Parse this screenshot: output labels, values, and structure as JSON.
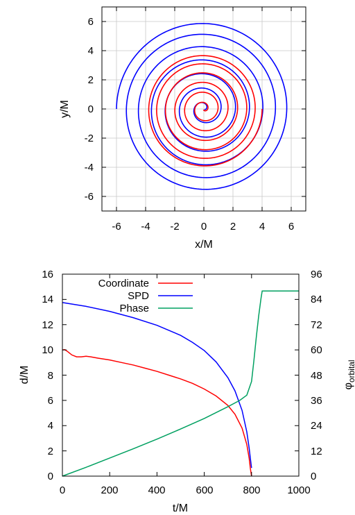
{
  "chart_data": [
    {
      "type": "line",
      "subtype": "parametric-orbit",
      "xlabel": "x/M",
      "ylabel": "y/M",
      "xlim": [
        -7,
        7
      ],
      "ylim": [
        -7,
        7
      ],
      "xticks": [
        -6,
        -4,
        -2,
        0,
        2,
        4,
        6
      ],
      "yticks": [
        -6,
        -4,
        -2,
        0,
        2,
        4,
        6
      ],
      "xtick_labels": [
        "-6",
        "-4",
        "-2",
        "0",
        "2",
        "4",
        "6"
      ],
      "ytick_labels": [
        "6",
        "4",
        "2",
        "0",
        "-2",
        "-4",
        "-6"
      ],
      "grid": true,
      "series": [
        {
          "color": "#0000ff",
          "start_point": [
            -6.0,
            0.0
          ],
          "spiral": {
            "r_start": 6.0,
            "r_end": 0.05,
            "turns": 6.6,
            "direction": "clockwise"
          }
        },
        {
          "color": "#ff0000",
          "start_point": [
            4.0,
            0.0
          ],
          "spiral": {
            "r_start": 4.0,
            "r_end": 0.05,
            "turns": 6.3,
            "direction": "clockwise"
          }
        }
      ]
    },
    {
      "type": "line",
      "xlabel": "t/M",
      "ylabel": "d/M",
      "y2label": "φorbital",
      "y2label_main": "φ",
      "y2label_sub": "orbital",
      "xlim": [
        0,
        1000
      ],
      "ylim": [
        0,
        16
      ],
      "y2lim": [
        0,
        96
      ],
      "xticks": [
        0,
        200,
        400,
        600,
        800,
        1000
      ],
      "yticks": [
        0,
        2,
        4,
        6,
        8,
        10,
        12,
        14,
        16
      ],
      "y2ticks": [
        0,
        12,
        24,
        36,
        48,
        60,
        72,
        84,
        96
      ],
      "xtick_labels": [
        "0",
        "200",
        "400",
        "600",
        "800",
        "1000"
      ],
      "ytick_labels": [
        "16",
        "14",
        "12",
        "10",
        "8",
        "6",
        "4",
        "2",
        "0"
      ],
      "y2tick_labels": [
        "96",
        "84",
        "72",
        "60",
        "48",
        "36",
        "24",
        "12",
        "0"
      ],
      "grid": false,
      "legend_position": "top-center",
      "series": [
        {
          "name": "Coordinate",
          "color": "#ff0000",
          "axis": "left",
          "x": [
            0,
            10,
            20,
            30,
            40,
            60,
            80,
            100,
            120,
            150,
            200,
            250,
            300,
            350,
            400,
            450,
            500,
            550,
            600,
            650,
            700,
            730,
            760,
            780,
            790,
            795,
            800
          ],
          "y": [
            10.0,
            10.02,
            9.9,
            9.75,
            9.6,
            9.45,
            9.45,
            9.5,
            9.45,
            9.35,
            9.2,
            9.0,
            8.8,
            8.55,
            8.3,
            8.0,
            7.7,
            7.35,
            6.9,
            6.35,
            5.6,
            4.9,
            3.8,
            2.5,
            1.4,
            0.6,
            0.0
          ]
        },
        {
          "name": "SPD",
          "color": "#0000ff",
          "axis": "left",
          "x": [
            0,
            100,
            200,
            300,
            400,
            500,
            550,
            600,
            650,
            700,
            730,
            760,
            780,
            790,
            795,
            800
          ],
          "y": [
            13.75,
            13.45,
            13.05,
            12.55,
            11.95,
            11.15,
            10.6,
            9.95,
            9.05,
            7.8,
            6.75,
            5.2,
            3.5,
            2.2,
            1.4,
            0.65
          ]
        },
        {
          "name": "Phase",
          "color": "#00a060",
          "axis": "right",
          "x": [
            0,
            100,
            200,
            300,
            400,
            500,
            600,
            700,
            750,
            780,
            800,
            810,
            820,
            830,
            840,
            845,
            1000
          ],
          "y": [
            0,
            4.2,
            8.6,
            13.0,
            17.6,
            22.4,
            27.4,
            33.0,
            36.0,
            38.5,
            45,
            55,
            66,
            76,
            84.5,
            88,
            88
          ]
        }
      ]
    }
  ]
}
